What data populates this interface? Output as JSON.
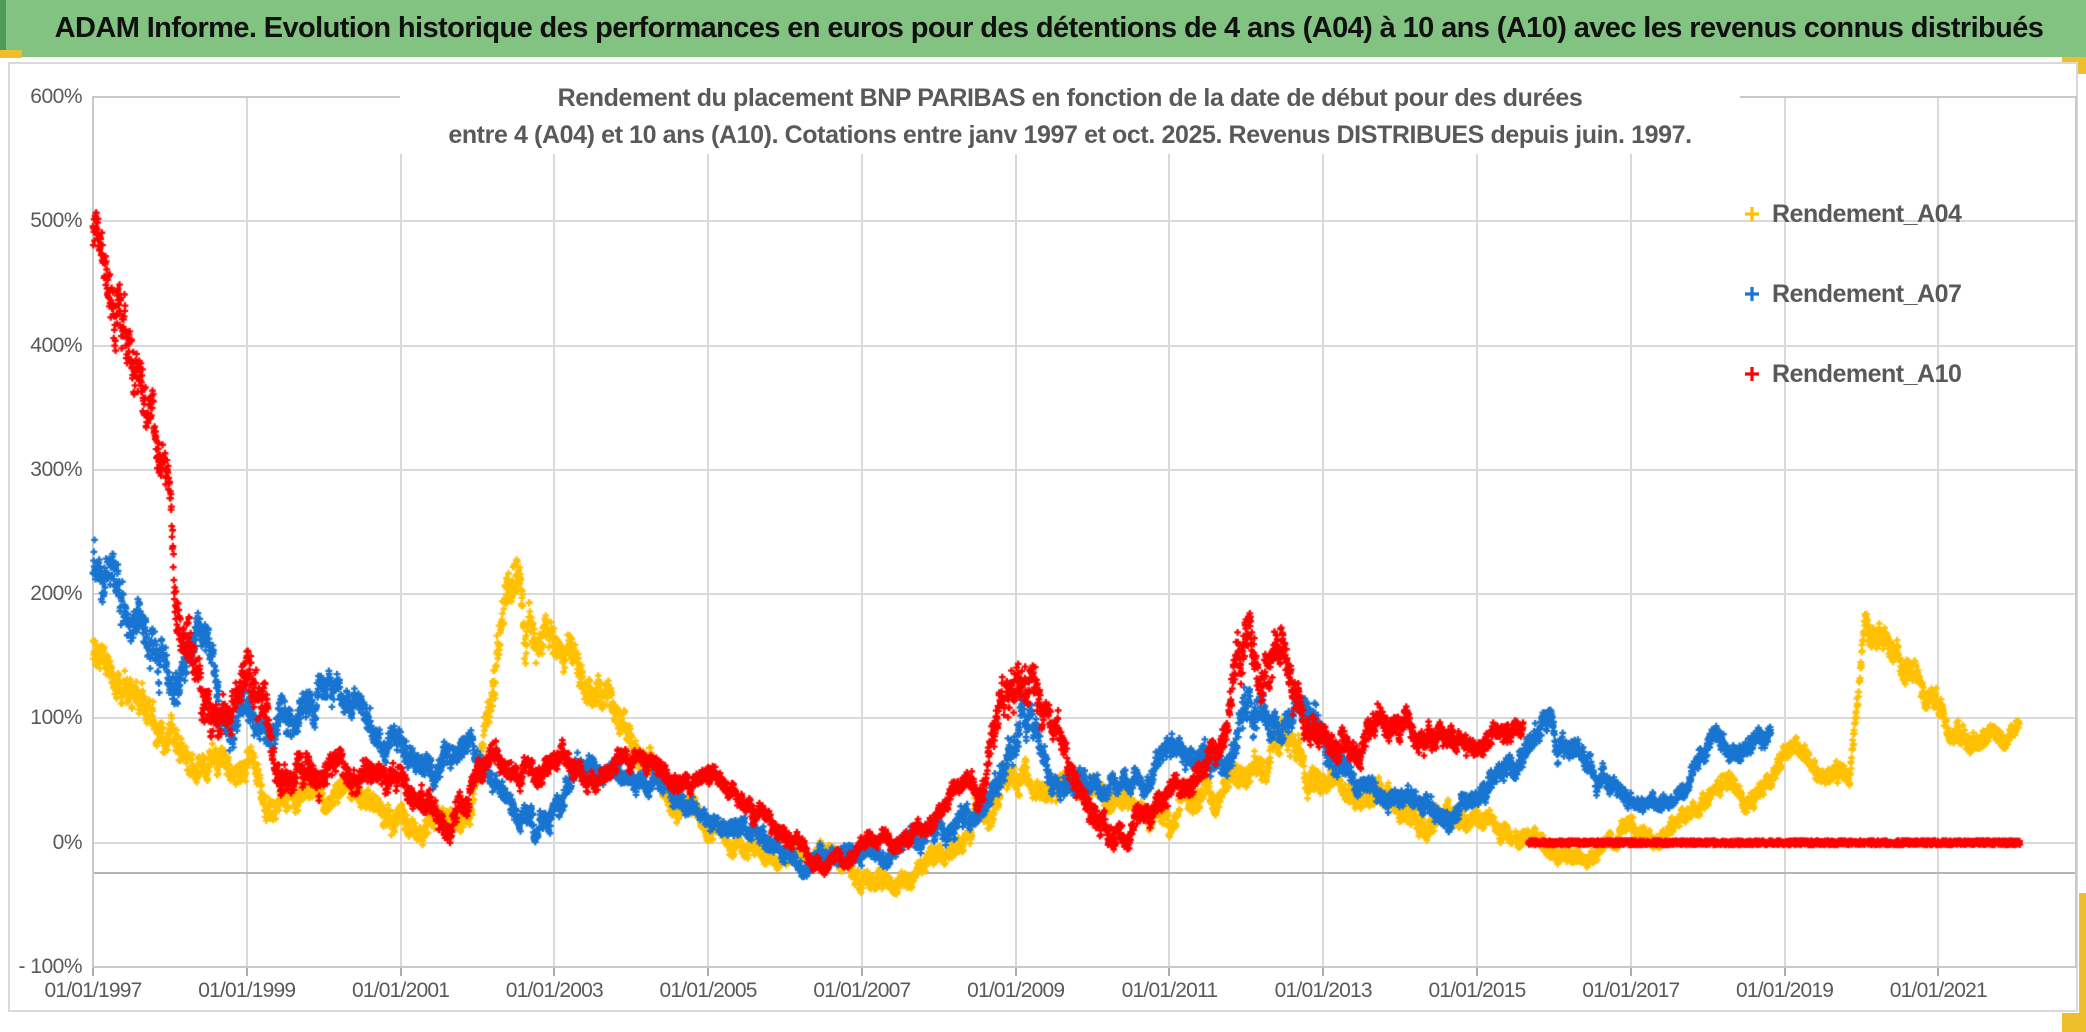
{
  "banner": {
    "title": "ADAM Informe. Evolution historique des performances en euros pour des détentions de 4 ans (A04) à 10 ans (A10) avec les revenus connus distribués"
  },
  "chart_data": {
    "type": "scatter",
    "title_line1": "Rendement du placement BNP PARIBAS en fonction de la date de début pour des durées",
    "title_line2": "entre 4 (A04) et 10 ans (A10). Cotations entre janv 1997 et oct. 2025. Revenus DISTRIBUES depuis juin. 1997.",
    "grid": true,
    "legend_position": "right-inside",
    "marker": "plus",
    "points_per_year": 252,
    "x_axis": {
      "min": 1997.0,
      "max": 2022.79,
      "x_axis_line_crosses_at": -24,
      "ticks": [
        {
          "year": 1997,
          "label": "01/01/1997"
        },
        {
          "year": 1999,
          "label": "01/01/1999"
        },
        {
          "year": 2001,
          "label": "01/01/2001"
        },
        {
          "year": 2003,
          "label": "01/01/2003"
        },
        {
          "year": 2005,
          "label": "01/01/2005"
        },
        {
          "year": 2007,
          "label": "01/01/2007"
        },
        {
          "year": 2009,
          "label": "01/01/2009"
        },
        {
          "year": 2011,
          "label": "01/01/2011"
        },
        {
          "year": 2013,
          "label": "01/01/2013"
        },
        {
          "year": 2015,
          "label": "01/01/2015"
        },
        {
          "year": 2017,
          "label": "01/01/2017"
        },
        {
          "year": 2019,
          "label": "01/01/2019"
        },
        {
          "year": 2021,
          "label": "01/01/2021"
        }
      ]
    },
    "y_axis": {
      "min": -100,
      "max": 600,
      "unit": "percent",
      "ticks": [
        {
          "value": 600,
          "label": "600%"
        },
        {
          "value": 500,
          "label": "500%"
        },
        {
          "value": 400,
          "label": "400%"
        },
        {
          "value": 300,
          "label": "300%"
        },
        {
          "value": 200,
          "label": "200%"
        },
        {
          "value": 100,
          "label": "100%"
        },
        {
          "value": 0,
          "label": "0%"
        },
        {
          "value": -100,
          "label": "- 100%"
        }
      ]
    },
    "series": [
      {
        "name": "Rendement_A04",
        "color": "#FFC000",
        "band_segments": [
          [
            [
              1997.0,
              115,
              195
            ],
            [
              1997.3,
              100,
              170
            ],
            [
              1997.8,
              60,
              140
            ],
            [
              1998.3,
              35,
              100
            ],
            [
              1998.8,
              15,
              80
            ],
            [
              1999.3,
              0,
              62
            ],
            [
              2000.0,
              5,
              55
            ],
            [
              2000.6,
              12,
              64
            ],
            [
              2001.2,
              -8,
              42
            ],
            [
              2001.9,
              -5,
              45
            ],
            [
              2002.15,
              35,
              110
            ],
            [
              2002.35,
              110,
              225
            ],
            [
              2002.55,
              125,
              233
            ],
            [
              2002.75,
              105,
              190
            ],
            [
              2003.05,
              115,
              185
            ],
            [
              2003.45,
              85,
              160
            ],
            [
              2003.9,
              55,
              120
            ],
            [
              2004.4,
              30,
              85
            ],
            [
              2005.0,
              5,
              50
            ],
            [
              2005.6,
              -18,
              22
            ],
            [
              2006.3,
              -35,
              2
            ],
            [
              2007.0,
              -55,
              -12
            ],
            [
              2007.5,
              -48,
              -8
            ],
            [
              2008.1,
              -28,
              12
            ],
            [
              2008.6,
              5,
              60
            ],
            [
              2008.9,
              25,
              100
            ],
            [
              2009.2,
              20,
              75
            ],
            [
              2009.7,
              25,
              70
            ],
            [
              2010.2,
              0,
              45
            ],
            [
              2010.8,
              10,
              58
            ],
            [
              2011.4,
              0,
              50
            ],
            [
              2011.95,
              22,
              80
            ],
            [
              2012.3,
              45,
              110
            ],
            [
              2012.5,
              60,
              135
            ],
            [
              2012.8,
              35,
              100
            ],
            [
              2013.2,
              25,
              78
            ],
            [
              2013.8,
              15,
              58
            ],
            [
              2014.3,
              -5,
              40
            ],
            [
              2014.9,
              0,
              42
            ],
            [
              2015.5,
              -15,
              25
            ],
            [
              2016.1,
              -30,
              5
            ],
            [
              2016.6,
              -20,
              15
            ],
            [
              2017.2,
              -5,
              30
            ],
            [
              2017.8,
              10,
              45
            ],
            [
              2018.15,
              35,
              82
            ],
            [
              2018.45,
              18,
              58
            ],
            [
              2018.9,
              40,
              80
            ],
            [
              2019.4,
              45,
              85
            ],
            [
              2019.85,
              40,
              80
            ],
            [
              2020.05,
              150,
              218
            ],
            [
              2020.25,
              140,
              205
            ],
            [
              2020.5,
              125,
              178
            ],
            [
              2020.8,
              100,
              152
            ],
            [
              2021.1,
              80,
              128
            ],
            [
              2021.5,
              62,
              108
            ],
            [
              2021.8,
              68,
              105
            ],
            [
              2022.05,
              80,
              110
            ]
          ]
        ]
      },
      {
        "name": "Rendement_A07",
        "color": "#1874D1",
        "band_segments": [
          [
            [
              1997.0,
              175,
              280
            ],
            [
              1997.25,
              130,
              235
            ],
            [
              1997.7,
              105,
              205
            ],
            [
              1998.1,
              95,
              185
            ],
            [
              1998.4,
              130,
              208
            ],
            [
              1998.75,
              60,
              150
            ],
            [
              1999.2,
              85,
              168
            ],
            [
              1999.6,
              70,
              145
            ],
            [
              2000.2,
              88,
              157
            ],
            [
              2000.7,
              58,
              118
            ],
            [
              2001.2,
              35,
              92
            ],
            [
              2001.9,
              42,
              95
            ],
            [
              2002.35,
              18,
              68
            ],
            [
              2002.75,
              -28,
              25
            ],
            [
              2003.05,
              -5,
              55
            ],
            [
              2003.35,
              40,
              95
            ],
            [
              2003.8,
              25,
              70
            ],
            [
              2004.4,
              22,
              60
            ],
            [
              2004.9,
              8,
              45
            ],
            [
              2005.4,
              -15,
              25
            ],
            [
              2006.1,
              -30,
              8
            ],
            [
              2006.9,
              -28,
              8
            ],
            [
              2007.5,
              -18,
              18
            ],
            [
              2008.1,
              -12,
              30
            ],
            [
              2008.6,
              0,
              58
            ],
            [
              2009.05,
              40,
              125
            ],
            [
              2009.5,
              25,
              80
            ],
            [
              2010.1,
              20,
              65
            ],
            [
              2010.7,
              22,
              68
            ],
            [
              2011.3,
              38,
              90
            ],
            [
              2011.75,
              42,
              95
            ],
            [
              2012.0,
              60,
              165
            ],
            [
              2012.35,
              58,
              128
            ],
            [
              2012.75,
              68,
              140
            ],
            [
              2013.1,
              48,
              108
            ],
            [
              2013.6,
              18,
              60
            ],
            [
              2014.25,
              -10,
              35
            ],
            [
              2014.8,
              12,
              55
            ],
            [
              2015.3,
              28,
              80
            ],
            [
              2015.9,
              58,
              115
            ],
            [
              2016.4,
              40,
              92
            ],
            [
              2017.1,
              18,
              50
            ],
            [
              2017.7,
              22,
              55
            ],
            [
              2018.05,
              55,
              110
            ],
            [
              2018.35,
              45,
              90
            ],
            [
              2018.6,
              60,
              100
            ],
            [
              2018.82,
              72,
              107
            ]
          ]
        ]
      },
      {
        "name": "Rendement_A10",
        "color": "#FF0000",
        "band_segments": [
          [
            [
              1997.0,
              420,
              545
            ],
            [
              1997.2,
              400,
              520
            ],
            [
              1997.45,
              345,
              480
            ],
            [
              1997.75,
              290,
              410
            ],
            [
              1998.0,
              240,
              330
            ],
            [
              1998.07,
              150,
              295
            ],
            [
              1998.25,
              110,
              230
            ],
            [
              1998.5,
              60,
              165
            ],
            [
              1998.8,
              80,
              165
            ],
            [
              1999.1,
              70,
              200
            ],
            [
              1999.4,
              35,
              110
            ],
            [
              1999.9,
              25,
              90
            ],
            [
              2000.4,
              22,
              82
            ],
            [
              2000.9,
              25,
              85
            ],
            [
              2001.35,
              -5,
              50
            ],
            [
              2001.65,
              -28,
              28
            ],
            [
              2002.0,
              20,
              75
            ],
            [
              2002.25,
              42,
              95
            ],
            [
              2002.6,
              32,
              85
            ],
            [
              2003.0,
              42,
              92
            ],
            [
              2003.5,
              38,
              85
            ],
            [
              2004.0,
              32,
              72
            ],
            [
              2004.6,
              30,
              65
            ],
            [
              2005.2,
              22,
              58
            ],
            [
              2005.8,
              -5,
              32
            ],
            [
              2006.4,
              -25,
              5
            ],
            [
              2007.0,
              -22,
              8
            ],
            [
              2007.6,
              -12,
              22
            ],
            [
              2008.1,
              8,
              48
            ],
            [
              2008.6,
              25,
              85
            ],
            [
              2008.95,
              70,
              188
            ],
            [
              2009.15,
              75,
              160
            ],
            [
              2009.55,
              45,
              110
            ],
            [
              2010.1,
              -15,
              45
            ],
            [
              2010.4,
              -22,
              30
            ],
            [
              2010.9,
              8,
              55
            ],
            [
              2011.4,
              30,
              85
            ],
            [
              2011.75,
              60,
              130
            ],
            [
              2011.95,
              95,
              218
            ],
            [
              2012.15,
              95,
              185
            ],
            [
              2012.45,
              100,
              212
            ],
            [
              2012.75,
              62,
              135
            ],
            [
              2013.2,
              48,
              105
            ],
            [
              2013.8,
              55,
              112
            ],
            [
              2014.4,
              60,
              115
            ],
            [
              2015.0,
              68,
              118
            ],
            [
              2015.45,
              72,
              118
            ],
            [
              2015.6,
              75,
              112
            ]
          ],
          [
            [
              2015.67,
              0,
              0
            ],
            [
              2022.06,
              0,
              0
            ]
          ]
        ]
      }
    ]
  },
  "colors": {
    "banner_bg": "#82C382",
    "banner_edge": "#4E9B57",
    "accent_yellow": "#EFBE2B",
    "gridline": "#D9D9D9",
    "axis_line": "#B5B5B5",
    "text_gray": "#595959"
  }
}
